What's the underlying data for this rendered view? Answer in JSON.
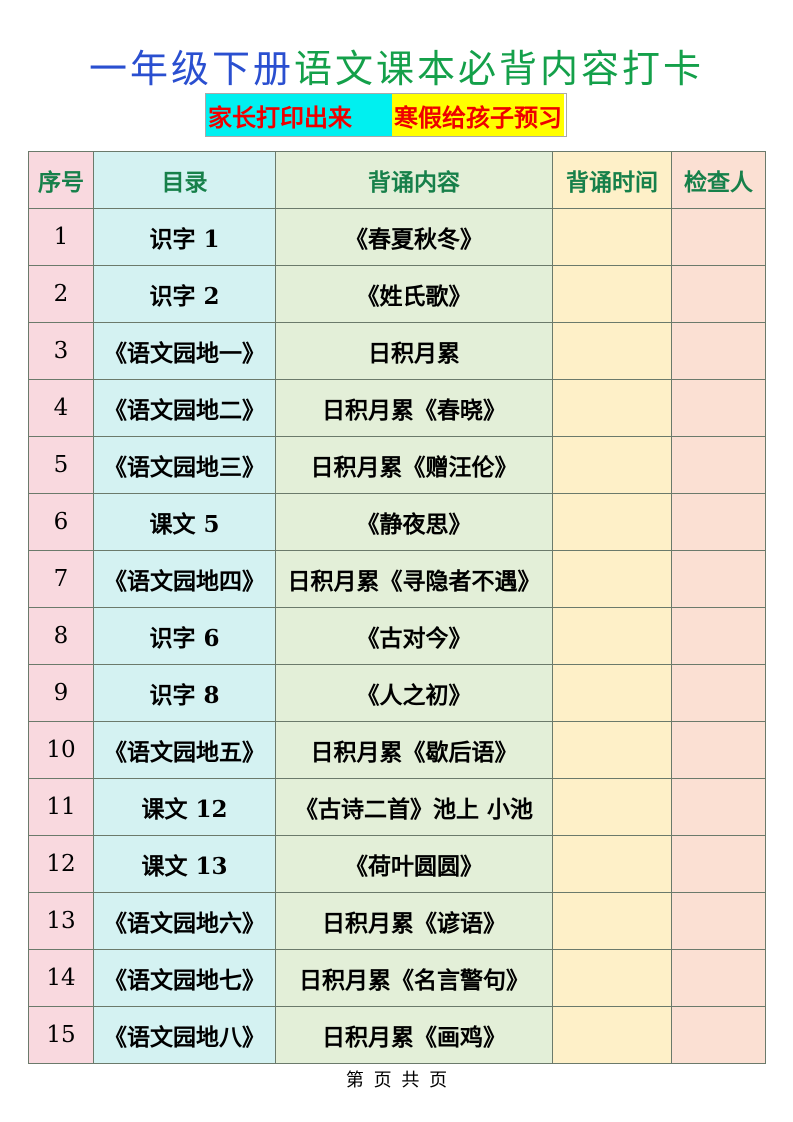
{
  "title": {
    "part1": "一年级下册",
    "part2": "语文课本必背内容打卡"
  },
  "subtitle": {
    "left": "家长打印出来",
    "right": "寒假给孩子预习"
  },
  "colors": {
    "title_blue": "#2a4fd0",
    "title_green": "#14a04a",
    "header_text": "#17804a",
    "subtitle_text": "#ee0000"
  },
  "table": {
    "headers": [
      "序号",
      "目录",
      "背诵内容",
      "背诵时间",
      "检查人"
    ],
    "rows": [
      [
        "1",
        "识字 1",
        "《春夏秋冬》"
      ],
      [
        "2",
        "识字 2",
        "《姓氏歌》"
      ],
      [
        "3",
        "《语文园地一》",
        "日积月累"
      ],
      [
        "4",
        "《语文园地二》",
        "日积月累《春晓》"
      ],
      [
        "5",
        "《语文园地三》",
        "日积月累《赠汪伦》"
      ],
      [
        "6",
        "课文 5",
        "《静夜思》"
      ],
      [
        "7",
        "《语文园地四》",
        "日积月累《寻隐者不遇》"
      ],
      [
        "8",
        "识字 6",
        "《古对今》"
      ],
      [
        "9",
        "识字 8",
        "《人之初》"
      ],
      [
        "10",
        "《语文园地五》",
        "日积月累《歇后语》"
      ],
      [
        "11",
        "课文 12",
        "《古诗二首》池上  小池"
      ],
      [
        "12",
        "课文 13",
        "《荷叶圆圆》"
      ],
      [
        "13",
        "《语文园地六》",
        "日积月累《谚语》"
      ],
      [
        "14",
        "《语文园地七》",
        "日积月累《名言警句》"
      ],
      [
        "15",
        "《语文园地八》",
        "日积月累《画鸡》"
      ]
    ]
  },
  "footer": "第 页 共 页"
}
